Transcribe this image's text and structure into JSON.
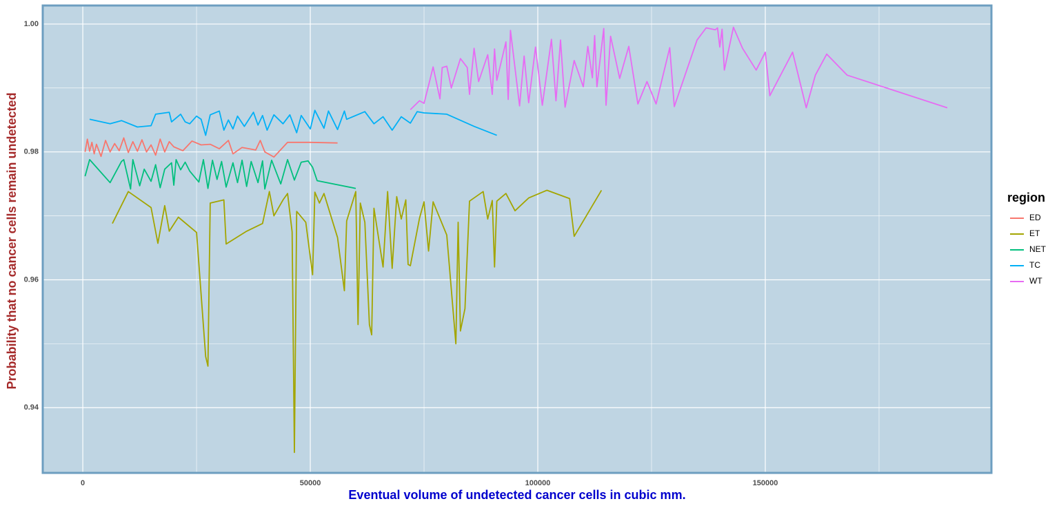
{
  "chart_data": {
    "type": "line",
    "x_label": "Eventual volume of undetected cancer cells in cubic mm.",
    "y_label": "Probability that no cancer cells remain undetected",
    "legend_title": "region",
    "legend_position": "right",
    "grid": true,
    "xlim": [
      -8800,
      199700
    ],
    "ylim": [
      0.9298,
      1.0029
    ],
    "xticks": [
      0,
      50000,
      100000,
      150000
    ],
    "x_minor_ticks": [
      25000,
      75000,
      125000,
      175000
    ],
    "yticks": [
      {
        "value": 1,
        "label": "1.00"
      },
      0.98,
      0.96,
      0.94
    ],
    "y_minor_ticks": [
      0.99,
      0.97,
      0.95
    ],
    "series": [
      {
        "name": "ED",
        "color": "#F8766D",
        "x": [
          500,
          1000,
          1500,
          2000,
          2500,
          3000,
          4000,
          5000,
          6000,
          7000,
          8000,
          9000,
          10000,
          11000,
          12000,
          13000,
          14000,
          15000,
          16000,
          17000,
          18000,
          19000,
          20000,
          22000,
          24000,
          26000,
          28000,
          30000,
          32000,
          33000,
          35000,
          38000,
          39000,
          40000,
          42000,
          45000,
          50000,
          56000
        ],
        "values": [
          0.98,
          0.982,
          0.9801,
          0.9815,
          0.9797,
          0.9812,
          0.9793,
          0.9818,
          0.98,
          0.9813,
          0.9802,
          0.9822,
          0.9799,
          0.9816,
          0.9801,
          0.9819,
          0.98,
          0.9811,
          0.9795,
          0.982,
          0.98,
          0.9816,
          0.9808,
          0.9802,
          0.9817,
          0.9811,
          0.9812,
          0.9805,
          0.9818,
          0.9797,
          0.9807,
          0.9803,
          0.9818,
          0.98,
          0.9792,
          0.9815,
          0.9815,
          0.9814
        ]
      },
      {
        "name": "ET",
        "color": "#A3A500",
        "x": [
          6500,
          10000,
          15000,
          16500,
          18000,
          19000,
          21000,
          25000,
          27000,
          27500,
          28000,
          31000,
          31500,
          36000,
          39500,
          41000,
          42000,
          44000,
          45000,
          46000,
          46500,
          47000,
          49000,
          50500,
          51000,
          52000,
          53000,
          56000,
          57500,
          58000,
          60000,
          60500,
          61000,
          62000,
          63000,
          63500,
          64000,
          66000,
          67000,
          68000,
          69000,
          70000,
          71000,
          71500,
          72000,
          74000,
          75000,
          76000,
          77000,
          80000,
          82000,
          82500,
          83000,
          84000,
          85000,
          88000,
          89000,
          90000,
          90500,
          91000,
          93000,
          95000,
          98000,
          102000,
          107000,
          108000,
          114000
        ],
        "values": [
          0.9688,
          0.9738,
          0.9713,
          0.9657,
          0.9716,
          0.9676,
          0.9698,
          0.9674,
          0.948,
          0.9465,
          0.972,
          0.9725,
          0.9656,
          0.9676,
          0.9688,
          0.9738,
          0.97,
          0.9725,
          0.9735,
          0.9675,
          0.933,
          0.9707,
          0.969,
          0.9608,
          0.9737,
          0.972,
          0.9735,
          0.9666,
          0.9583,
          0.9692,
          0.9738,
          0.953,
          0.972,
          0.969,
          0.953,
          0.9514,
          0.9712,
          0.962,
          0.9738,
          0.9618,
          0.973,
          0.9695,
          0.9725,
          0.9624,
          0.9622,
          0.9696,
          0.9722,
          0.9645,
          0.9722,
          0.967,
          0.95,
          0.969,
          0.952,
          0.9555,
          0.9723,
          0.9738,
          0.9695,
          0.9724,
          0.962,
          0.9723,
          0.9735,
          0.9708,
          0.9728,
          0.974,
          0.9727,
          0.9668,
          0.974
        ]
      },
      {
        "name": "NET",
        "color": "#00BF7D",
        "x": [
          500,
          1500,
          6000,
          8500,
          9000,
          10500,
          11000,
          12500,
          13500,
          15000,
          16000,
          17000,
          18000,
          19500,
          20000,
          20500,
          21500,
          22500,
          23500,
          25500,
          26500,
          27500,
          28500,
          29500,
          30500,
          31500,
          33000,
          34000,
          35000,
          36000,
          37000,
          38500,
          39500,
          40000,
          41500,
          43500,
          45000,
          46500,
          48000,
          49500,
          50500,
          51500,
          60000
        ],
        "values": [
          0.9762,
          0.9788,
          0.9752,
          0.9785,
          0.9788,
          0.9742,
          0.9788,
          0.9747,
          0.9773,
          0.9754,
          0.978,
          0.9744,
          0.9773,
          0.9783,
          0.9748,
          0.9788,
          0.9772,
          0.9784,
          0.977,
          0.9753,
          0.9788,
          0.9743,
          0.9787,
          0.9757,
          0.9785,
          0.9745,
          0.9783,
          0.9752,
          0.9787,
          0.9746,
          0.9785,
          0.9752,
          0.9786,
          0.9742,
          0.9787,
          0.975,
          0.9788,
          0.9756,
          0.9784,
          0.9786,
          0.9776,
          0.9755,
          0.9743
        ]
      },
      {
        "name": "TC",
        "color": "#00B0F6",
        "x": [
          1500,
          6000,
          8500,
          12000,
          15000,
          16000,
          19000,
          19500,
          21500,
          22500,
          23500,
          25000,
          26000,
          27000,
          28000,
          30000,
          31000,
          32000,
          33000,
          34000,
          35500,
          37500,
          38500,
          39500,
          40500,
          42000,
          44000,
          45500,
          47000,
          48000,
          50000,
          51000,
          53000,
          54000,
          56000,
          57500,
          58000,
          62000,
          64000,
          66000,
          68000,
          70000,
          72000,
          73500,
          75000,
          80000,
          86000,
          91000
        ],
        "values": [
          0.9851,
          0.9844,
          0.9849,
          0.9839,
          0.9841,
          0.9859,
          0.9862,
          0.9847,
          0.9859,
          0.9847,
          0.9844,
          0.9856,
          0.9851,
          0.9826,
          0.9858,
          0.9864,
          0.9834,
          0.985,
          0.9836,
          0.9856,
          0.984,
          0.9862,
          0.9842,
          0.9857,
          0.9834,
          0.9858,
          0.9844,
          0.9858,
          0.983,
          0.9857,
          0.9836,
          0.9865,
          0.9837,
          0.9864,
          0.9835,
          0.9864,
          0.9851,
          0.9863,
          0.9844,
          0.9855,
          0.9834,
          0.9855,
          0.9845,
          0.9863,
          0.9861,
          0.9859,
          0.984,
          0.9826
        ]
      },
      {
        "name": "WT",
        "color": "#E76BF3",
        "x": [
          72000,
          74000,
          75000,
          76000,
          77000,
          78500,
          79000,
          80000,
          81000,
          83000,
          84500,
          85000,
          86000,
          87000,
          89000,
          90000,
          90500,
          91000,
          93000,
          93500,
          94000,
          96000,
          97000,
          98000,
          99500,
          101000,
          103000,
          104000,
          105000,
          106000,
          108000,
          110000,
          111000,
          112000,
          112500,
          113000,
          114500,
          115000,
          116000,
          118000,
          120000,
          122000,
          124000,
          126000,
          129000,
          130000,
          135000,
          137000,
          139000,
          139500,
          140000,
          140500,
          141000,
          143000,
          145000,
          148000,
          150000,
          151000,
          156000,
          159000,
          161000,
          163500,
          168000,
          190000
        ],
        "values": [
          0.9866,
          0.988,
          0.9876,
          0.9904,
          0.9933,
          0.9883,
          0.9932,
          0.9934,
          0.99,
          0.9946,
          0.9932,
          0.989,
          0.9962,
          0.991,
          0.9952,
          0.989,
          0.9961,
          0.9912,
          0.9972,
          0.9882,
          0.999,
          0.9872,
          0.995,
          0.9877,
          0.9964,
          0.9873,
          0.9976,
          0.988,
          0.9975,
          0.987,
          0.9943,
          0.9902,
          0.9965,
          0.9916,
          0.9982,
          0.9902,
          0.9993,
          0.9873,
          0.9981,
          0.9915,
          0.9965,
          0.9875,
          0.991,
          0.9875,
          0.9963,
          0.9871,
          0.9975,
          0.9994,
          0.9991,
          0.9994,
          0.9964,
          0.9992,
          0.9928,
          0.9995,
          0.9962,
          0.9928,
          0.9956,
          0.9888,
          0.9956,
          0.9869,
          0.992,
          0.9953,
          0.992,
          0.9869
        ]
      }
    ]
  }
}
